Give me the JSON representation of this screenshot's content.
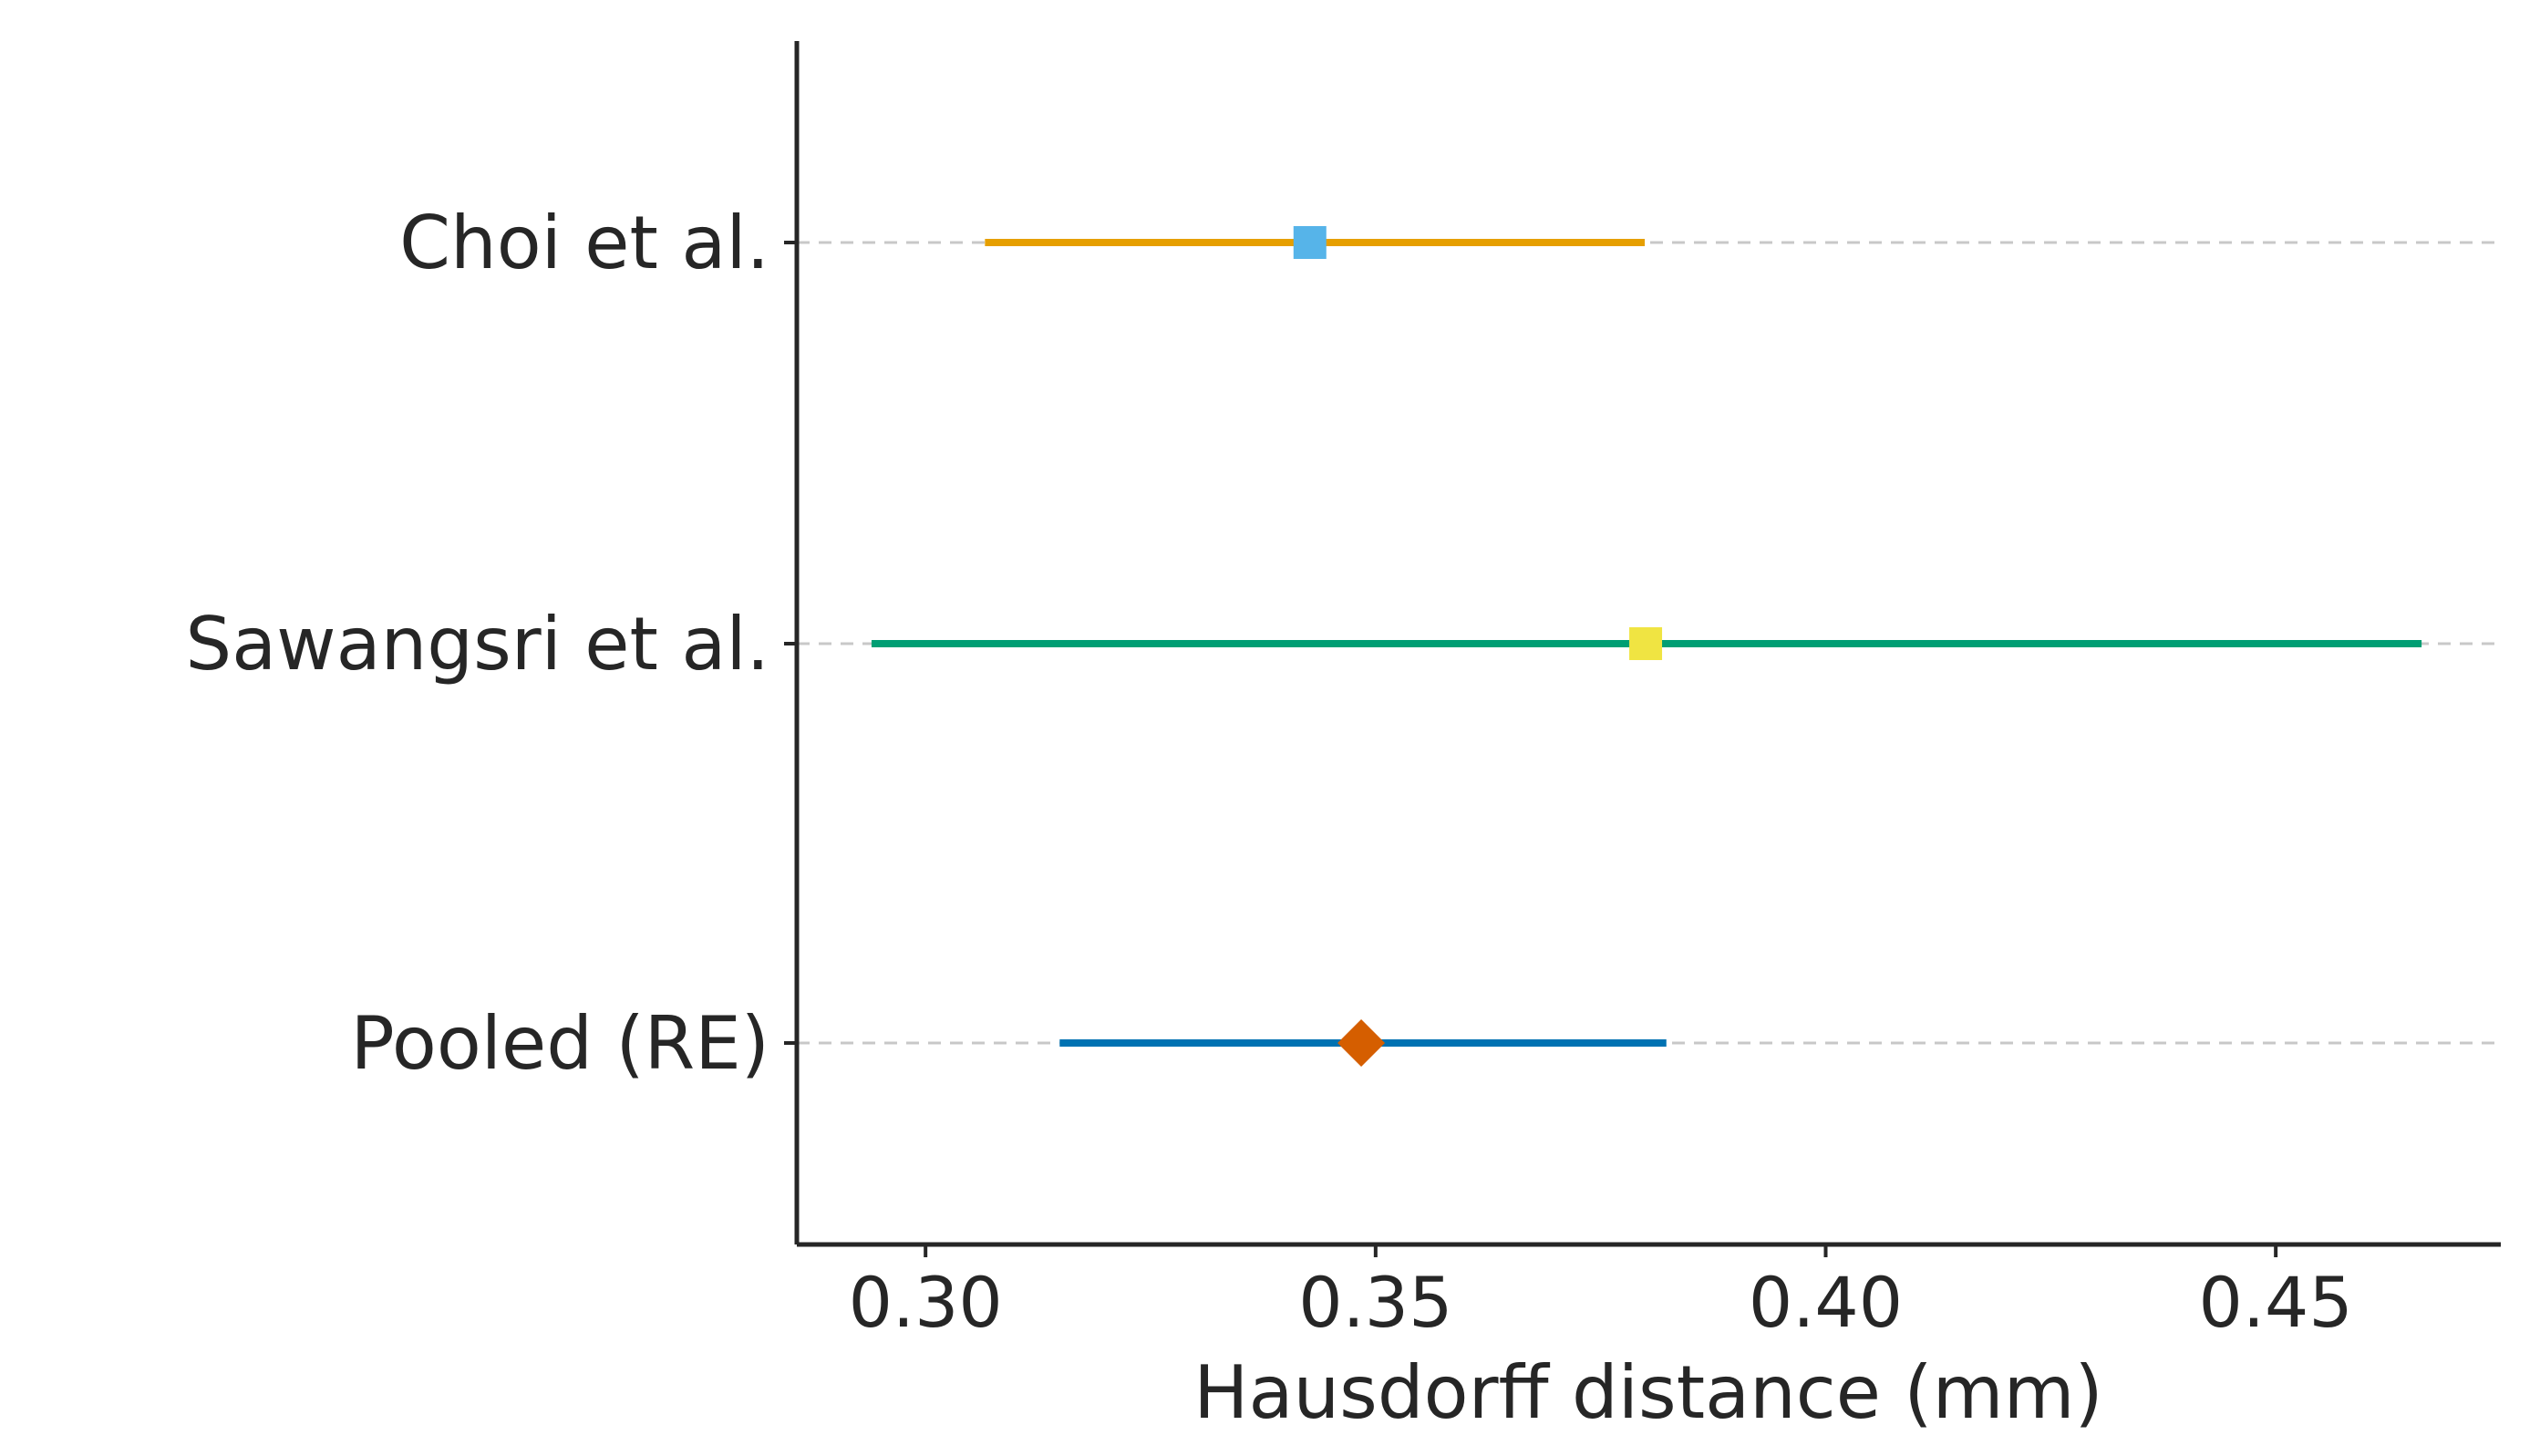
{
  "chart_data": {
    "type": "forest",
    "title": "",
    "xlabel": "Hausdorff distance (mm)",
    "ylabel": "",
    "xlim": [
      0.2857,
      0.475
    ],
    "xticks": [
      0.3,
      0.35,
      0.4,
      0.45
    ],
    "xtick_labels": [
      "0.30",
      "0.35",
      "0.40",
      "0.45"
    ],
    "grid": "horizontal dashed",
    "legend": "none",
    "rows": [
      {
        "label": "Choi et al.",
        "estimate": 0.3427,
        "ci_low": 0.3066,
        "ci_high": 0.3799,
        "marker": "square",
        "marker_color": "#56B4E9",
        "line_color": "#E69F00"
      },
      {
        "label": "Sawangsri et al.",
        "estimate": 0.38,
        "ci_low": 0.294,
        "ci_high": 0.4662,
        "marker": "square",
        "marker_color": "#F0E442",
        "line_color": "#009E73"
      },
      {
        "label": "Pooled (RE)",
        "estimate": 0.3484,
        "ci_low": 0.3149,
        "ci_high": 0.3823,
        "marker": "diamond",
        "marker_color": "#D55E00",
        "line_color": "#0072B2"
      }
    ]
  }
}
